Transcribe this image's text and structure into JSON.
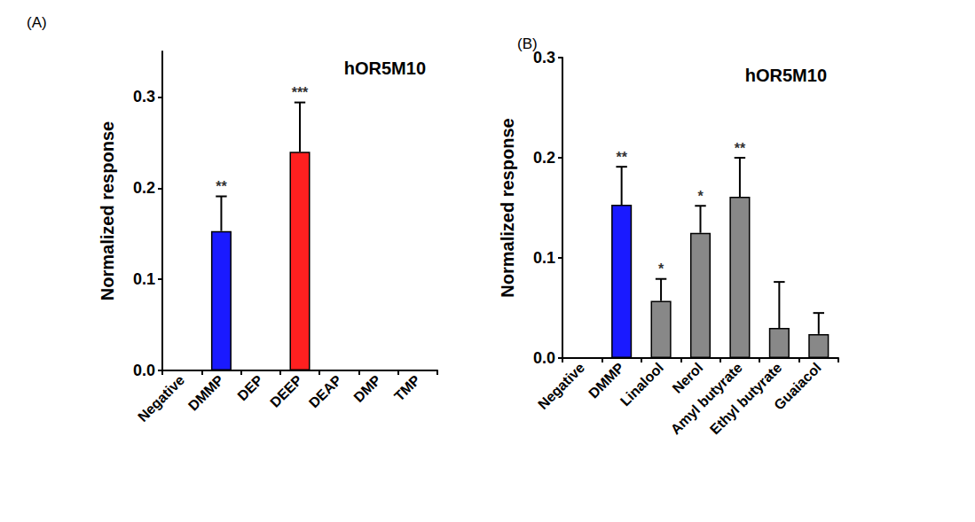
{
  "chart_data": [
    {
      "type": "bar",
      "panel": "(A)",
      "title": "hOR5M10",
      "ylabel": "Normalized response",
      "categories": [
        "Negative",
        "DMMP",
        "DEP",
        "DEEP",
        "DEAP",
        "DMP",
        "TMP"
      ],
      "values": [
        0,
        0.153,
        0,
        0.24,
        0,
        0,
        0
      ],
      "errors": [
        null,
        0.038,
        null,
        0.054,
        null,
        null,
        null
      ],
      "annotations": [
        null,
        "**",
        null,
        "***",
        null,
        null,
        null
      ],
      "colors": [
        "#000000",
        "#1a1aff",
        "#000000",
        "#ff2020",
        "#000000",
        "#000000",
        "#000000"
      ],
      "ylim": [
        0,
        0.35
      ],
      "yticks": [
        {
          "value": 0,
          "label": "0.0"
        },
        {
          "value": 0.1,
          "label": "0.1"
        },
        {
          "value": 0.2,
          "label": "0.2"
        },
        {
          "value": 0.3,
          "label": "0.3"
        }
      ],
      "grid": false
    },
    {
      "type": "bar",
      "panel": "(B)",
      "title": "hOR5M10",
      "ylabel": "Normalized response",
      "categories": [
        "Negative",
        "DMMP",
        "Linalool",
        "Nerol",
        "Amyl butyrate",
        "Ethyl butyrate",
        "Guaiacol"
      ],
      "values": [
        0,
        0.153,
        0.057,
        0.125,
        0.161,
        0.03,
        0.024
      ],
      "errors": [
        null,
        0.038,
        0.022,
        0.027,
        0.039,
        0.046,
        0.021
      ],
      "annotations": [
        null,
        "**",
        "*",
        "*",
        "**",
        null,
        null
      ],
      "colors": [
        "#000000",
        "#1a1aff",
        "#888888",
        "#888888",
        "#888888",
        "#888888",
        "#888888"
      ],
      "ylim": [
        0,
        0.3
      ],
      "yticks": [
        {
          "value": 0,
          "label": "0.0"
        },
        {
          "value": 0.1,
          "label": "0.1"
        },
        {
          "value": 0.2,
          "label": "0.2"
        },
        {
          "value": 0.3,
          "label": "0.3"
        }
      ],
      "grid": false
    }
  ]
}
